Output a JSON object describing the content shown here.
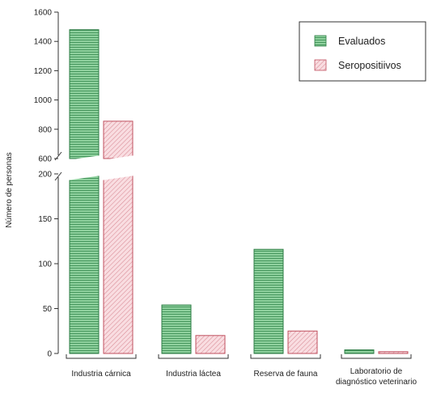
{
  "chart_data": {
    "type": "bar",
    "ylabel": "Número de personas",
    "categories": [
      [
        "Industria cárnica"
      ],
      [
        "Industria láctea"
      ],
      [
        "Reserva de fauna"
      ],
      [
        "Laboratorio de",
        "diagnóstico veterinario"
      ]
    ],
    "series": [
      {
        "name": "Evaluados",
        "values": [
          1480,
          54,
          116,
          4
        ],
        "color": "#6cbf7f",
        "stroke": "#2e7d45",
        "pattern": "horizontal-lines"
      },
      {
        "name": "Seropositiivos",
        "values": [
          855,
          20,
          25,
          2
        ],
        "color": "#f2b8bf",
        "stroke": "#c0505f",
        "pattern": "diagonal-lines"
      }
    ],
    "axis_break": {
      "lower_range": [
        0,
        200
      ],
      "upper_range": [
        600,
        1600
      ]
    },
    "lower_ticks": [
      0,
      50,
      100,
      150,
      200
    ],
    "upper_ticks": [
      600,
      800,
      1000,
      1200,
      1400,
      1600
    ],
    "legend_position": "top-right",
    "grid": false
  }
}
